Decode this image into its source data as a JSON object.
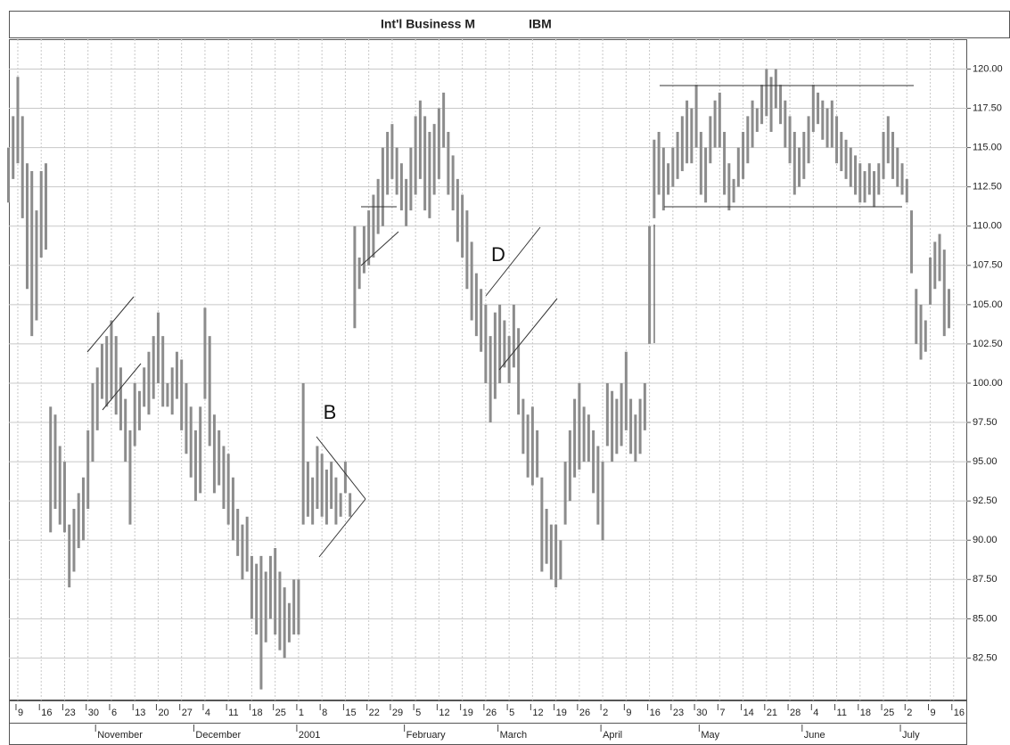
{
  "chart_data": {
    "type": "hlc",
    "title": "Int'l Business M",
    "symbol": "IBM",
    "annotations": [
      "B",
      "D"
    ],
    "color": "#8c8c8c",
    "grid": true,
    "xlim": [
      -1.9,
      202.9
    ],
    "ylim": [
      79.8,
      121.9
    ],
    "yticks": [
      {
        "value": 82.5,
        "label": "82.50"
      },
      {
        "value": 85,
        "label": "85.00"
      },
      {
        "value": 87.5,
        "label": "87.50"
      },
      {
        "value": 90,
        "label": "90.00"
      },
      {
        "value": 92.5,
        "label": "92.50"
      },
      {
        "value": 95,
        "label": "95.00"
      },
      {
        "value": 97.5,
        "label": "97.50"
      },
      {
        "value": 100,
        "label": "100.00"
      },
      {
        "value": 102.5,
        "label": "102.50"
      },
      {
        "value": 105,
        "label": "105.00"
      },
      {
        "value": 107.5,
        "label": "107.50"
      },
      {
        "value": 110,
        "label": "110.00"
      },
      {
        "value": 112.5,
        "label": "112.50"
      },
      {
        "value": 115,
        "label": "115.00"
      },
      {
        "value": 117.5,
        "label": "117.50"
      },
      {
        "value": 120,
        "label": "120.00"
      }
    ],
    "xticks": [
      {
        "value": 0,
        "label": "9"
      },
      {
        "value": 5,
        "label": "16"
      },
      {
        "value": 10,
        "label": "23"
      },
      {
        "value": 15,
        "label": "30"
      },
      {
        "value": 20,
        "label": "6"
      },
      {
        "value": 25,
        "label": "13"
      },
      {
        "value": 30,
        "label": "20"
      },
      {
        "value": 35,
        "label": "27"
      },
      {
        "value": 40,
        "label": "4"
      },
      {
        "value": 45,
        "label": "11"
      },
      {
        "value": 50,
        "label": "18"
      },
      {
        "value": 55,
        "label": "25"
      },
      {
        "value": 60,
        "label": "1"
      },
      {
        "value": 65,
        "label": "8"
      },
      {
        "value": 70,
        "label": "15"
      },
      {
        "value": 75,
        "label": "22"
      },
      {
        "value": 80,
        "label": "29"
      },
      {
        "value": 85,
        "label": "5"
      },
      {
        "value": 90,
        "label": "12"
      },
      {
        "value": 95,
        "label": "19"
      },
      {
        "value": 100,
        "label": "26"
      },
      {
        "value": 105,
        "label": "5"
      },
      {
        "value": 110,
        "label": "12"
      },
      {
        "value": 115,
        "label": "19"
      },
      {
        "value": 120,
        "label": "26"
      },
      {
        "value": 125,
        "label": "2"
      },
      {
        "value": 130,
        "label": "9"
      },
      {
        "value": 135,
        "label": "16"
      },
      {
        "value": 140,
        "label": "23"
      },
      {
        "value": 145,
        "label": "30"
      },
      {
        "value": 150,
        "label": "7"
      },
      {
        "value": 155,
        "label": "14"
      },
      {
        "value": 160,
        "label": "21"
      },
      {
        "value": 165,
        "label": "28"
      },
      {
        "value": 170,
        "label": "4"
      },
      {
        "value": 175,
        "label": "11"
      },
      {
        "value": 180,
        "label": "18"
      },
      {
        "value": 185,
        "label": "25"
      },
      {
        "value": 190,
        "label": "2"
      },
      {
        "value": 195,
        "label": "9"
      },
      {
        "value": 200,
        "label": "16"
      }
    ],
    "month_ticks": [
      {
        "value": 17,
        "label": "November"
      },
      {
        "value": 38,
        "label": "December"
      },
      {
        "value": 60,
        "label": "2001"
      },
      {
        "value": 83,
        "label": "February"
      },
      {
        "value": 103,
        "label": "March"
      },
      {
        "value": 125,
        "label": "April"
      },
      {
        "value": 146,
        "label": "May"
      },
      {
        "value": 168,
        "label": "June"
      },
      {
        "value": 189,
        "label": "July"
      }
    ],
    "x": [
      -2,
      -1,
      0,
      1,
      2,
      3,
      4,
      5,
      6,
      7,
      8,
      9,
      10,
      11,
      12,
      13,
      14,
      15,
      16,
      17,
      18,
      19,
      20,
      21,
      22,
      23,
      24,
      25,
      26,
      27,
      28,
      29,
      30,
      31,
      32,
      33,
      34,
      35,
      36,
      37,
      38,
      39,
      40,
      41,
      42,
      43,
      44,
      45,
      46,
      47,
      48,
      49,
      50,
      51,
      52,
      53,
      54,
      55,
      56,
      57,
      58,
      59,
      60,
      61,
      62,
      63,
      64,
      65,
      66,
      67,
      68,
      69,
      70,
      71,
      72,
      73,
      74,
      75,
      76,
      77,
      78,
      79,
      80,
      81,
      82,
      83,
      84,
      85,
      86,
      87,
      88,
      89,
      90,
      91,
      92,
      93,
      94,
      95,
      96,
      97,
      98,
      99,
      100,
      101,
      102,
      103,
      104,
      105,
      106,
      107,
      108,
      109,
      110,
      111,
      112,
      113,
      114,
      115,
      116,
      117,
      118,
      119,
      120,
      121,
      122,
      123,
      124,
      125,
      126,
      127,
      128,
      129,
      130,
      131,
      132,
      133,
      134,
      135,
      136,
      137,
      138,
      139,
      140,
      141,
      142,
      143,
      144,
      145,
      146,
      147,
      148,
      149,
      150,
      151,
      152,
      153,
      154,
      155,
      156,
      157,
      158,
      159,
      160,
      161,
      162,
      163,
      164,
      165,
      166,
      167,
      168,
      169,
      170,
      171,
      172,
      173,
      174,
      175,
      176,
      177,
      178,
      179,
      180,
      181,
      182,
      183,
      184,
      185,
      186,
      187,
      188,
      189,
      190,
      191,
      192,
      193,
      194,
      195,
      196,
      197,
      198,
      199
    ],
    "high": [
      115,
      117,
      119.5,
      117,
      114,
      113.5,
      111,
      113.5,
      114,
      98.5,
      98,
      96,
      95,
      91,
      92,
      93,
      94,
      97,
      100,
      101,
      102.5,
      103,
      104,
      103,
      101,
      99,
      97,
      100,
      99.5,
      101,
      102,
      103,
      104.5,
      103,
      100,
      101,
      102,
      101.5,
      100,
      98.5,
      97,
      98.5,
      104.8,
      103,
      98,
      97,
      96,
      95.5,
      94,
      92,
      91,
      91.5,
      89,
      88.5,
      89,
      88,
      89,
      89.5,
      88,
      87,
      86,
      87.5,
      87.5,
      100,
      95,
      94,
      96,
      95.5,
      94.5,
      95,
      94,
      93,
      95,
      93,
      110,
      108,
      110,
      111,
      112,
      113,
      115,
      116,
      116.5,
      115,
      114,
      113,
      115,
      117,
      118,
      117,
      116,
      116.5,
      117.5,
      118.5,
      116,
      114.5,
      113,
      112,
      111,
      109,
      107,
      106,
      105,
      103,
      104.5,
      105,
      104,
      103,
      105,
      103.5,
      99,
      98,
      98.5,
      97,
      94,
      92,
      91,
      91,
      90,
      95,
      97,
      99,
      100,
      98.5,
      98,
      97,
      96,
      95,
      100,
      99.5,
      99,
      100,
      102,
      99,
      98,
      99,
      100,
      110,
      115.5,
      116,
      115,
      114,
      115,
      116,
      117,
      118,
      117.5,
      119,
      116,
      115,
      117,
      118,
      118.5,
      116,
      114,
      113,
      115,
      116,
      117,
      118,
      117.5,
      119,
      120,
      119.5,
      120,
      119,
      118,
      117,
      116,
      115,
      116,
      117,
      119,
      118.5,
      118,
      117.5,
      118,
      117,
      116,
      115.5,
      115,
      114.5,
      114,
      113.5,
      114,
      113.5,
      114,
      116,
      117,
      116,
      115,
      114,
      113,
      111,
      106,
      105,
      104,
      108,
      109,
      109.5,
      108.5,
      106
    ],
    "low": [
      111.5,
      113,
      114,
      110.5,
      106,
      103,
      104,
      108,
      108.5,
      90.5,
      92,
      91,
      90.5,
      87,
      88,
      89.5,
      90,
      92,
      95,
      97,
      99,
      98.5,
      99,
      98,
      97,
      95,
      91,
      96,
      97,
      98.5,
      98,
      99,
      100,
      98.5,
      98.5,
      98,
      99,
      97,
      95.5,
      94,
      92.5,
      93,
      99,
      96,
      93,
      93.5,
      92,
      91,
      90,
      89,
      87.5,
      88,
      85,
      84,
      80.5,
      83.5,
      85,
      84,
      83,
      82.5,
      83.5,
      84,
      84,
      91,
      91.5,
      91,
      92,
      91.5,
      91,
      92,
      91,
      91.5,
      93,
      91.5,
      103.5,
      106,
      107,
      107.5,
      108,
      109.5,
      110,
      112,
      113,
      112,
      111,
      110,
      111,
      112,
      113,
      111,
      110.5,
      112,
      113,
      115,
      112,
      111,
      109,
      108,
      106,
      104,
      103,
      102,
      100,
      97.5,
      99,
      100,
      101,
      100,
      101,
      98,
      95.5,
      94,
      93.5,
      94,
      88,
      88.5,
      87.5,
      87,
      87.5,
      91,
      92.5,
      94,
      94.5,
      95,
      95,
      93,
      91,
      90,
      96,
      95,
      95.5,
      96,
      97,
      95.5,
      95,
      95.5,
      97,
      102.5,
      110.5,
      112,
      111,
      112,
      112.5,
      113,
      113.5,
      114,
      114,
      115,
      112,
      111.5,
      114,
      115,
      115,
      112,
      111,
      111.5,
      112.5,
      113,
      114,
      115,
      116,
      116.5,
      117,
      116,
      117.5,
      116.5,
      115,
      114,
      112,
      112.5,
      113,
      114,
      116,
      116.5,
      115.5,
      115,
      115,
      114,
      113.5,
      113,
      112.5,
      112,
      111.5,
      111.5,
      112,
      111.2,
      112,
      113,
      114,
      113,
      112.5,
      112,
      111.5,
      107,
      102.5,
      101.5,
      102,
      105,
      106,
      106.5,
      103,
      103.5
    ]
  }
}
